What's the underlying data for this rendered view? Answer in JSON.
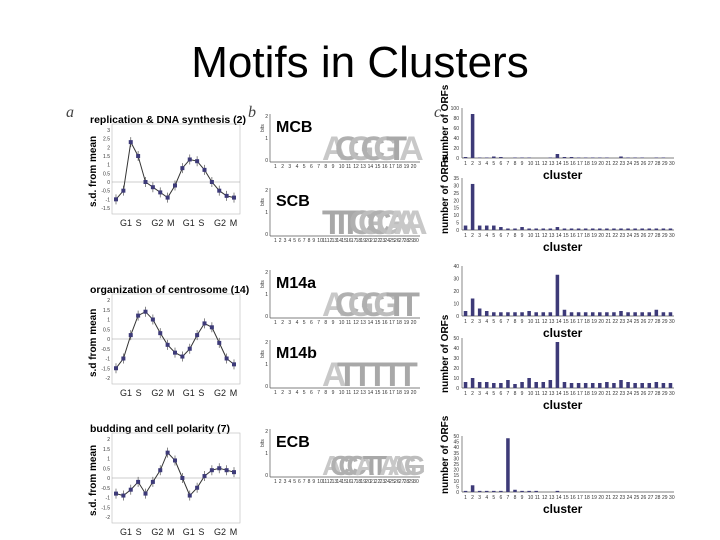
{
  "slide_title": "Motifs in Clusters",
  "panel_labels": [
    "a",
    "b",
    "c"
  ],
  "column_a": {
    "ylabel": "s.d. from mean",
    "phases": [
      "G1",
      "S",
      "G2",
      "M",
      "G1",
      "S",
      "G2",
      "M"
    ],
    "plots": [
      {
        "title": "replication & DNA synthesis (2)",
        "ylabel": "s.d. from mean",
        "yticks": [
          "3",
          "2.5",
          "2",
          "1.5",
          "1",
          "0.5",
          "0",
          "-0.5",
          "-1",
          "-1.5"
        ],
        "values": [
          -1.0,
          -0.5,
          2.3,
          1.5,
          0.0,
          -0.3,
          -0.6,
          -0.9,
          -0.2,
          0.8,
          1.3,
          1.2,
          0.7,
          0.0,
          -0.5,
          -0.8,
          -0.9
        ]
      },
      {
        "title": "organization of centrosome (14)",
        "ylabel": "s.d from mean",
        "yticks": [
          "2",
          "1.5",
          "1",
          "0.5",
          "0",
          "-0.5",
          "-1",
          "-1.5",
          "-2"
        ],
        "values": [
          -1.5,
          -1.0,
          0.2,
          1.2,
          1.4,
          1.0,
          0.3,
          -0.3,
          -0.7,
          -0.9,
          -0.5,
          0.2,
          0.8,
          0.6,
          -0.2,
          -1.0,
          -1.3
        ]
      },
      {
        "title": "budding and cell polarity (7)",
        "ylabel": "s.d. from mean",
        "yticks": [
          "2",
          "1.5",
          "1",
          "0.5",
          "0",
          "-0.5",
          "-1",
          "-1.5",
          "-2"
        ],
        "values": [
          -0.8,
          -0.9,
          -0.6,
          -0.2,
          -0.8,
          -0.2,
          0.4,
          1.3,
          0.9,
          0.0,
          -0.9,
          -0.5,
          0.1,
          0.4,
          0.5,
          0.4,
          0.3
        ]
      }
    ]
  },
  "column_b": {
    "motifs": [
      {
        "name": "MCB",
        "logo_letters": "ACGCGTA",
        "xticks": [
          "1",
          "2",
          "3",
          "4",
          "5",
          "6",
          "7",
          "8",
          "9",
          "10",
          "11",
          "12",
          "13",
          "14",
          "15",
          "16",
          "17",
          "18",
          "19",
          "20"
        ]
      },
      {
        "name": "SCB",
        "logo_letters": "TTTCGCGAAA",
        "xticks": [
          "1",
          "2",
          "3",
          "4",
          "5",
          "6",
          "7",
          "8",
          "9",
          "10",
          "11",
          "12",
          "13",
          "14",
          "15",
          "16",
          "17",
          "18",
          "19",
          "20",
          "21",
          "22",
          "23",
          "24",
          "25",
          "26",
          "27",
          "28",
          "29",
          "30"
        ]
      },
      {
        "name": "M14a",
        "logo_letters": "ACGCGTT",
        "xticks": [
          "1",
          "2",
          "3",
          "4",
          "5",
          "6",
          "7",
          "8",
          "9",
          "10",
          "11",
          "12",
          "13",
          "14",
          "15",
          "16",
          "17",
          "18",
          "19",
          "20"
        ]
      },
      {
        "name": "M14b",
        "logo_letters": "ATTTTT",
        "xticks": [
          "1",
          "2",
          "3",
          "4",
          "5",
          "6",
          "7",
          "8",
          "9",
          "10",
          "11",
          "12",
          "13",
          "14",
          "15",
          "16",
          "17",
          "18",
          "19",
          "20"
        ]
      },
      {
        "name": "ECB",
        "logo_letters": "ACCCATTAAGG",
        "xticks": [
          "1",
          "2",
          "3",
          "4",
          "5",
          "6",
          "7",
          "8",
          "9",
          "10",
          "11",
          "12",
          "13",
          "14",
          "15",
          "16",
          "17",
          "18",
          "19",
          "20",
          "21",
          "22",
          "23",
          "24",
          "25",
          "26",
          "27",
          "28",
          "29",
          "30"
        ]
      }
    ],
    "ylabel": "bits",
    "yticks": [
      "2",
      "1",
      "0"
    ]
  },
  "chart_data": [
    {
      "type": "bar",
      "xlabel": "cluster",
      "ylabel": "number of ORFs",
      "ylim": [
        0,
        100
      ],
      "yticks": [
        "100",
        "80",
        "60",
        "40",
        "20",
        "0"
      ],
      "categories": [
        "1",
        "2",
        "3",
        "4",
        "5",
        "6",
        "7",
        "8",
        "9",
        "10",
        "11",
        "12",
        "13",
        "14",
        "15",
        "16",
        "17",
        "18",
        "19",
        "20",
        "21",
        "22",
        "23",
        "24",
        "25",
        "26",
        "27",
        "28",
        "29",
        "30"
      ],
      "values": [
        2,
        88,
        1,
        1,
        3,
        2,
        0,
        1,
        1,
        1,
        0,
        0,
        1,
        8,
        2,
        2,
        1,
        1,
        1,
        1,
        1,
        0,
        3,
        1,
        1,
        1,
        0,
        1,
        1,
        0
      ]
    },
    {
      "type": "bar",
      "xlabel": "cluster",
      "ylabel": "number of ORFs",
      "ylim": [
        0,
        35
      ],
      "yticks": [
        "35",
        "30",
        "25",
        "20",
        "15",
        "10",
        "5",
        "0"
      ],
      "categories": [
        "1",
        "2",
        "3",
        "4",
        "5",
        "6",
        "7",
        "8",
        "9",
        "10",
        "11",
        "12",
        "13",
        "14",
        "15",
        "16",
        "17",
        "18",
        "19",
        "20",
        "21",
        "22",
        "23",
        "24",
        "25",
        "26",
        "27",
        "28",
        "29",
        "30"
      ],
      "values": [
        3,
        31,
        3,
        3,
        3,
        2,
        1,
        1,
        2,
        1,
        1,
        1,
        1,
        2,
        1,
        1,
        1,
        1,
        1,
        1,
        1,
        1,
        1,
        1,
        1,
        1,
        1,
        1,
        1,
        1
      ]
    },
    {
      "type": "bar",
      "xlabel": "cluster",
      "ylabel": "",
      "ylim": [
        0,
        40
      ],
      "yticks": [
        "40",
        "30",
        "20",
        "10",
        "0"
      ],
      "categories": [
        "1",
        "2",
        "3",
        "4",
        "5",
        "6",
        "7",
        "8",
        "9",
        "10",
        "11",
        "12",
        "13",
        "14",
        "15",
        "16",
        "17",
        "18",
        "19",
        "20",
        "21",
        "22",
        "23",
        "24",
        "25",
        "26",
        "27",
        "28",
        "29",
        "30"
      ],
      "values": [
        4,
        14,
        6,
        4,
        3,
        3,
        3,
        3,
        3,
        4,
        3,
        3,
        3,
        33,
        5,
        3,
        3,
        3,
        3,
        3,
        3,
        3,
        4,
        3,
        3,
        3,
        3,
        5,
        3,
        3
      ]
    },
    {
      "type": "bar",
      "xlabel": "cluster",
      "ylabel": "number of ORFs",
      "ylim": [
        0,
        50
      ],
      "yticks": [
        "50",
        "40",
        "30",
        "20",
        "10",
        "0"
      ],
      "categories": [
        "1",
        "2",
        "3",
        "4",
        "5",
        "6",
        "7",
        "8",
        "9",
        "10",
        "11",
        "12",
        "13",
        "14",
        "15",
        "16",
        "17",
        "18",
        "19",
        "20",
        "21",
        "22",
        "23",
        "24",
        "25",
        "26",
        "27",
        "28",
        "29",
        "30"
      ],
      "values": [
        6,
        10,
        6,
        6,
        5,
        5,
        8,
        4,
        6,
        10,
        6,
        6,
        8,
        46,
        6,
        5,
        5,
        5,
        5,
        5,
        6,
        5,
        8,
        6,
        5,
        5,
        5,
        6,
        5,
        5
      ]
    },
    {
      "type": "bar",
      "xlabel": "cluster",
      "ylabel": "number of ORFs",
      "ylim": [
        0,
        50
      ],
      "yticks": [
        "50",
        "45",
        "40",
        "35",
        "30",
        "25",
        "20",
        "15",
        "10",
        "5",
        "0"
      ],
      "categories": [
        "1",
        "2",
        "3",
        "4",
        "5",
        "6",
        "7",
        "8",
        "9",
        "10",
        "11",
        "12",
        "13",
        "14",
        "15",
        "16",
        "17",
        "18",
        "19",
        "20",
        "21",
        "22",
        "23",
        "24",
        "25",
        "26",
        "27",
        "28",
        "29",
        "30"
      ],
      "values": [
        1,
        6,
        1,
        1,
        1,
        1,
        48,
        2,
        1,
        1,
        1,
        0,
        0,
        1,
        0,
        0,
        0,
        0,
        0,
        0,
        0,
        0,
        0,
        0,
        0,
        0,
        0,
        0,
        0,
        0
      ]
    }
  ]
}
